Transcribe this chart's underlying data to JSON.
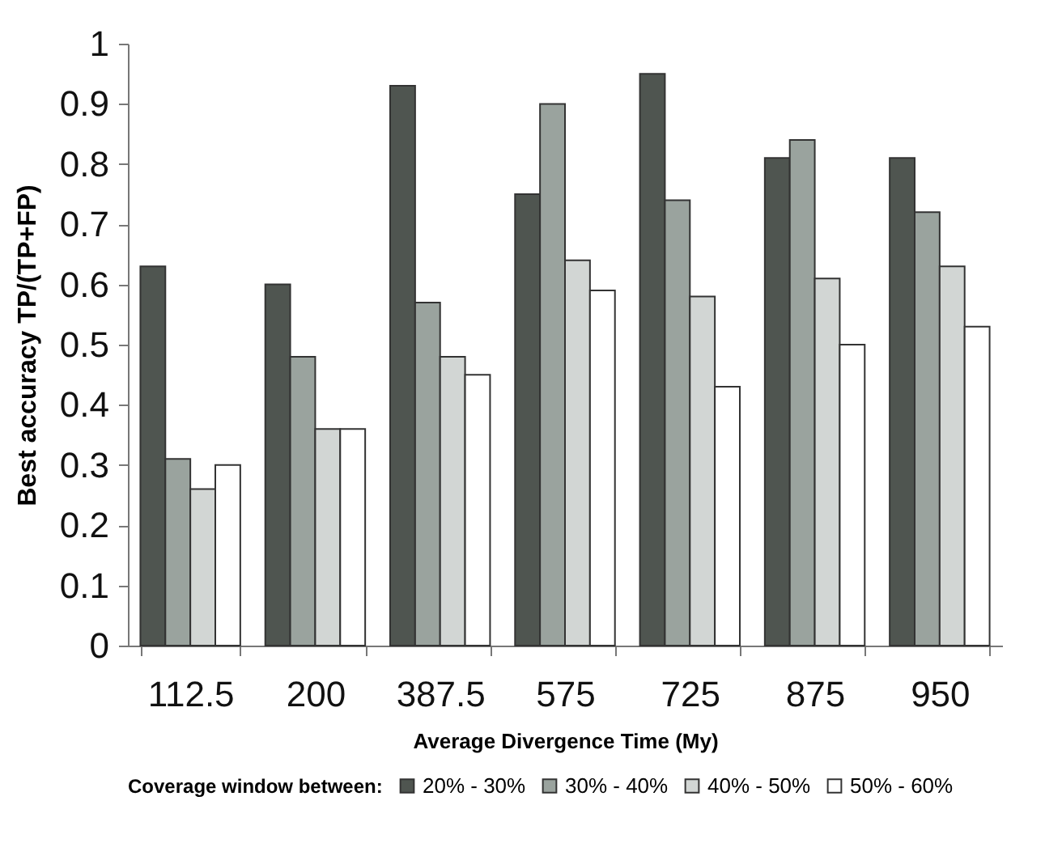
{
  "chart_data": {
    "type": "bar",
    "xlabel": "Average Divergence Time (My)",
    "ylabel": "Best accuracy TP/(TP+FP)",
    "legend_title": "Coverage window between:",
    "categories": [
      "112.5",
      "200",
      "387.5",
      "575",
      "725",
      "875",
      "950"
    ],
    "series": [
      {
        "name": "20% - 30%",
        "color": "#4f5550",
        "values": [
          0.63,
          0.6,
          0.93,
          0.75,
          0.95,
          0.81,
          0.81
        ]
      },
      {
        "name": "30% - 40%",
        "color": "#9aa39e",
        "values": [
          0.31,
          0.48,
          0.57,
          0.9,
          0.74,
          0.84,
          0.72
        ]
      },
      {
        "name": "40% - 50%",
        "color": "#d2d6d4",
        "values": [
          0.26,
          0.36,
          0.48,
          0.64,
          0.58,
          0.61,
          0.63
        ]
      },
      {
        "name": "50% - 60%",
        "color": "#ffffff",
        "values": [
          0.3,
          0.36,
          0.45,
          0.59,
          0.43,
          0.5,
          0.53
        ]
      }
    ],
    "ylim": [
      0,
      1
    ],
    "yticks": [
      0,
      0.1,
      0.2,
      0.3,
      0.4,
      0.5,
      0.6,
      0.7,
      0.8,
      0.9,
      1
    ],
    "grid": false,
    "legend": "bottom"
  }
}
